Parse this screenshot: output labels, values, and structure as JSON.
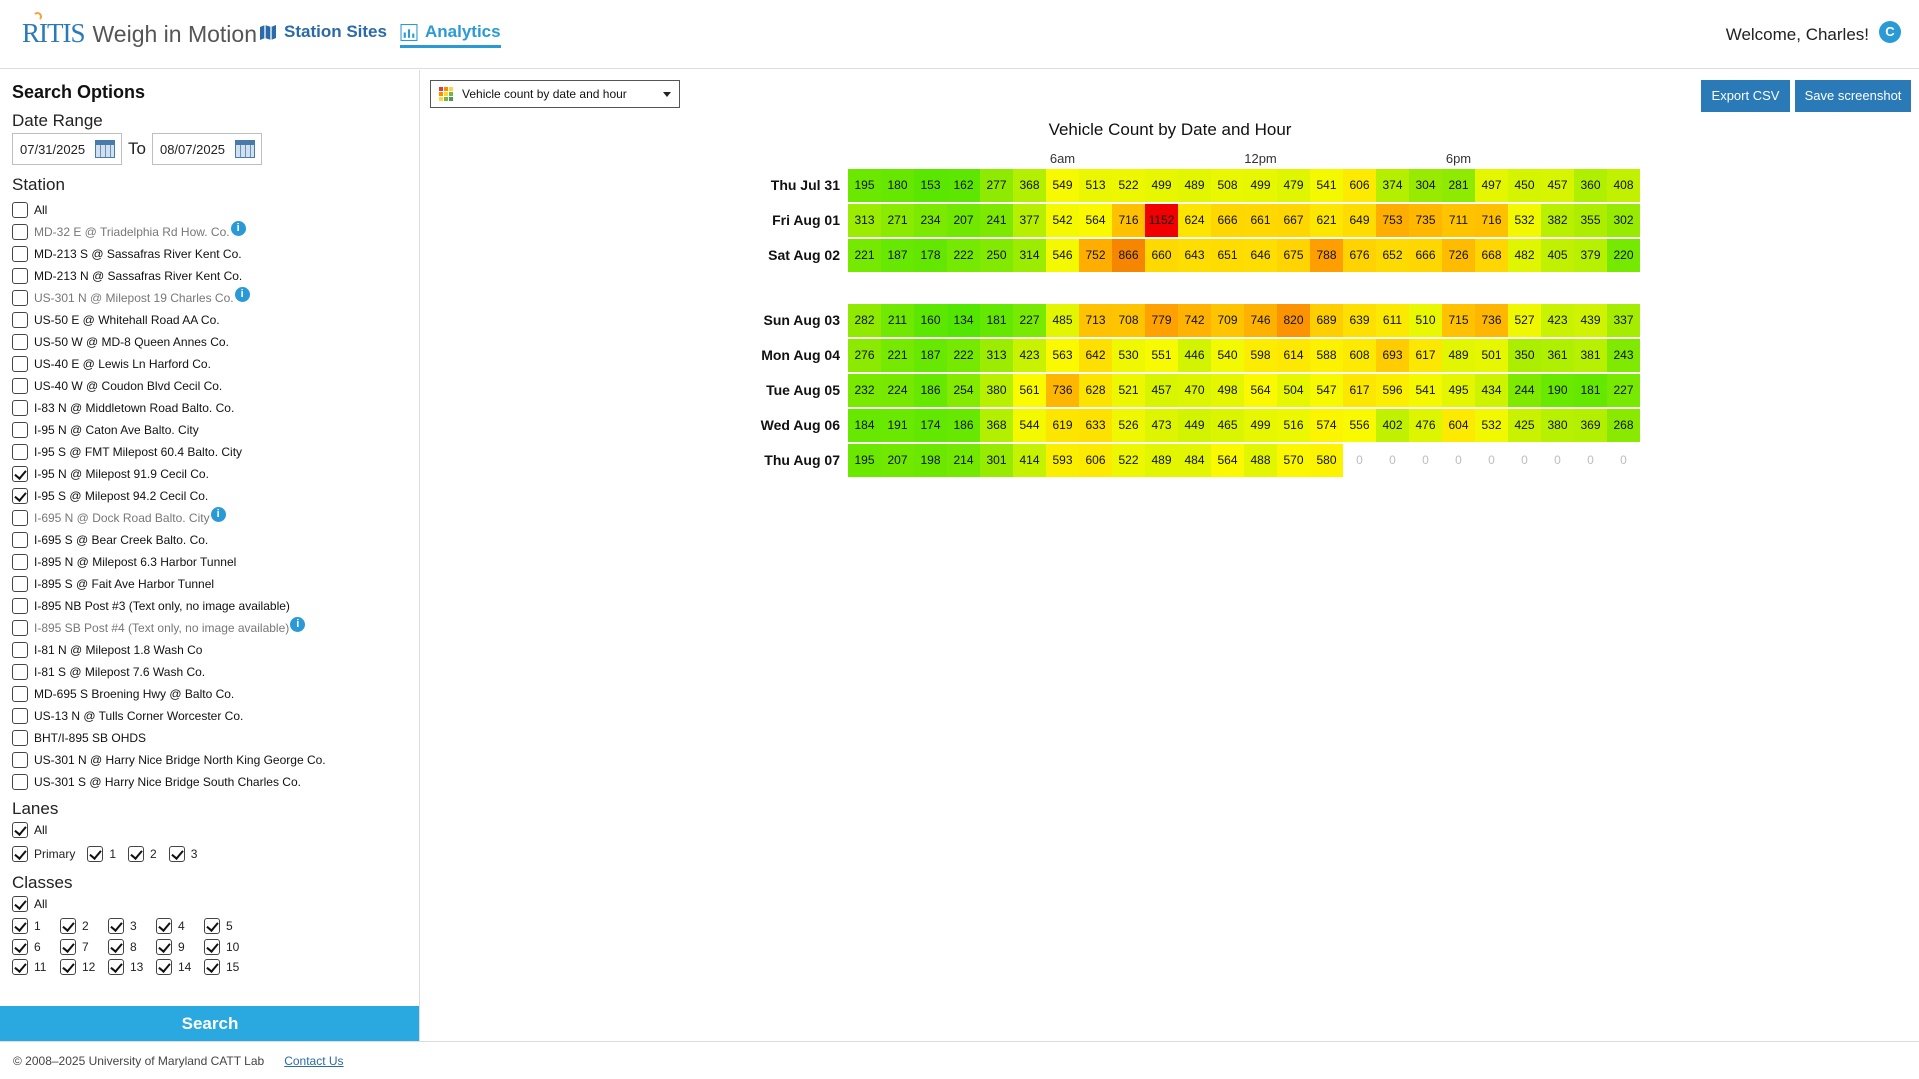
{
  "header": {
    "logo_brand": "RITIS",
    "logo_text": "Weigh in Motion",
    "nav": [
      {
        "label": "Station Sites",
        "active": false
      },
      {
        "label": "Analytics",
        "active": true
      }
    ],
    "welcome": "Welcome, Charles!"
  },
  "sidebar": {
    "title": "Search Options",
    "date_range_label": "Date Range",
    "date_from": "07/31/2025",
    "to_label": "To",
    "date_to": "08/07/2025",
    "station_label": "Station",
    "stations": [
      {
        "label": "All",
        "checked": false,
        "dim": false,
        "info": false
      },
      {
        "label": "MD-32 E @ Triadelphia Rd How. Co.",
        "checked": false,
        "dim": true,
        "info": true
      },
      {
        "label": "MD-213 S @ Sassafras River Kent Co.",
        "checked": false,
        "dim": false,
        "info": false
      },
      {
        "label": "MD-213 N @ Sassafras River Kent Co.",
        "checked": false,
        "dim": false,
        "info": false
      },
      {
        "label": "US-301 N @ Milepost 19 Charles Co.",
        "checked": false,
        "dim": true,
        "info": true
      },
      {
        "label": "US-50 E @ Whitehall Road AA Co.",
        "checked": false,
        "dim": false,
        "info": false
      },
      {
        "label": "US-50 W @ MD-8 Queen Annes Co.",
        "checked": false,
        "dim": false,
        "info": false
      },
      {
        "label": "US-40 E @ Lewis Ln Harford Co.",
        "checked": false,
        "dim": false,
        "info": false
      },
      {
        "label": "US-40 W @ Coudon Blvd Cecil Co.",
        "checked": false,
        "dim": false,
        "info": false
      },
      {
        "label": "I-83 N @ Middletown Road Balto. Co.",
        "checked": false,
        "dim": false,
        "info": false
      },
      {
        "label": "I-95 N @ Caton Ave Balto. City",
        "checked": false,
        "dim": false,
        "info": false
      },
      {
        "label": "I-95 S @ FMT Milepost 60.4 Balto. City",
        "checked": false,
        "dim": false,
        "info": false
      },
      {
        "label": "I-95 N @ Milepost 91.9 Cecil Co.",
        "checked": true,
        "dim": false,
        "info": false
      },
      {
        "label": "I-95 S @ Milepost 94.2 Cecil Co.",
        "checked": true,
        "dim": false,
        "info": false
      },
      {
        "label": "I-695 N @ Dock Road Balto. City",
        "checked": false,
        "dim": true,
        "info": true
      },
      {
        "label": "I-695 S @ Bear Creek Balto. Co.",
        "checked": false,
        "dim": false,
        "info": false
      },
      {
        "label": "I-895 N @ Milepost 6.3 Harbor Tunnel",
        "checked": false,
        "dim": false,
        "info": false
      },
      {
        "label": "I-895 S @ Fait Ave Harbor Tunnel",
        "checked": false,
        "dim": false,
        "info": false
      },
      {
        "label": "I-895 NB Post #3 (Text only, no image available)",
        "checked": false,
        "dim": false,
        "info": false
      },
      {
        "label": "I-895 SB Post #4 (Text only, no image available)",
        "checked": false,
        "dim": true,
        "info": true
      },
      {
        "label": "I-81 N @ Milepost 1.8 Wash Co",
        "checked": false,
        "dim": false,
        "info": false
      },
      {
        "label": "I-81 S @ Milepost 7.6 Wash Co.",
        "checked": false,
        "dim": false,
        "info": false
      },
      {
        "label": "MD-695 S Broening Hwy @ Balto Co.",
        "checked": false,
        "dim": false,
        "info": false
      },
      {
        "label": "US-13 N @ Tulls Corner Worcester Co.",
        "checked": false,
        "dim": false,
        "info": false
      },
      {
        "label": "BHT/I-895 SB OHDS",
        "checked": false,
        "dim": false,
        "info": false
      },
      {
        "label": "US-301 N @ Harry Nice Bridge North King George Co.",
        "checked": false,
        "dim": false,
        "info": false
      },
      {
        "label": "US-301 S @ Harry Nice Bridge South Charles Co.",
        "checked": false,
        "dim": false,
        "info": false
      }
    ],
    "lanes_label": "Lanes",
    "lanes_all": "All",
    "lanes": [
      "Primary",
      "1",
      "2",
      "3"
    ],
    "classes_label": "Classes",
    "classes_all": "All",
    "classes_rows": [
      [
        "1",
        "2",
        "3",
        "4",
        "5"
      ],
      [
        "6",
        "7",
        "8",
        "9",
        "10"
      ],
      [
        "11",
        "12",
        "13",
        "14",
        "15"
      ]
    ],
    "search_button": "Search"
  },
  "toolbar": {
    "view_select": "Vehicle count by date and hour",
    "export_csv": "Export CSV",
    "save_screenshot": "Save screenshot"
  },
  "footer": {
    "copyright": "© 2008–2025 University of Maryland CATT Lab",
    "contact": "Contact Us"
  },
  "chart_data": {
    "type": "heatmap",
    "title": "Vehicle Count by Date and Hour",
    "x_tick_labels": [
      {
        "hour": 6,
        "label": "6am"
      },
      {
        "hour": 12,
        "label": "12pm"
      },
      {
        "hour": 18,
        "label": "6pm"
      }
    ],
    "hours": [
      0,
      1,
      2,
      3,
      4,
      5,
      6,
      7,
      8,
      9,
      10,
      11,
      12,
      13,
      14,
      15,
      16,
      17,
      18,
      19,
      20,
      21,
      22,
      23
    ],
    "rows": [
      {
        "label": "Thu Jul 31",
        "week": 0,
        "values": [
          195,
          180,
          153,
          162,
          277,
          368,
          549,
          513,
          522,
          499,
          489,
          508,
          499,
          479,
          541,
          606,
          374,
          304,
          281,
          497,
          450,
          457,
          360,
          408
        ]
      },
      {
        "label": "Fri Aug 01",
        "week": 0,
        "values": [
          313,
          271,
          234,
          207,
          241,
          377,
          542,
          564,
          716,
          1152,
          624,
          666,
          661,
          667,
          621,
          649,
          753,
          735,
          711,
          716,
          532,
          382,
          355,
          302
        ]
      },
      {
        "label": "Sat Aug 02",
        "week": 0,
        "values": [
          221,
          187,
          178,
          222,
          250,
          314,
          546,
          752,
          866,
          660,
          643,
          651,
          646,
          675,
          788,
          676,
          652,
          666,
          726,
          668,
          482,
          405,
          379,
          220
        ]
      },
      {
        "label": "Sun Aug 03",
        "week": 1,
        "values": [
          282,
          211,
          160,
          134,
          181,
          227,
          485,
          713,
          708,
          779,
          742,
          709,
          746,
          820,
          689,
          639,
          611,
          510,
          715,
          736,
          527,
          423,
          439,
          337
        ]
      },
      {
        "label": "Mon Aug 04",
        "week": 1,
        "values": [
          276,
          221,
          187,
          222,
          313,
          423,
          563,
          642,
          530,
          551,
          446,
          540,
          598,
          614,
          588,
          608,
          693,
          617,
          489,
          501,
          350,
          361,
          381,
          243
        ]
      },
      {
        "label": "Tue Aug 05",
        "week": 1,
        "values": [
          232,
          224,
          186,
          254,
          380,
          561,
          736,
          628,
          521,
          457,
          470,
          498,
          564,
          504,
          547,
          617,
          596,
          541,
          495,
          434,
          244,
          190,
          181,
          227
        ]
      },
      {
        "label": "Wed Aug 06",
        "week": 1,
        "values": [
          184,
          191,
          174,
          186,
          368,
          544,
          619,
          633,
          526,
          473,
          449,
          465,
          499,
          516,
          574,
          556,
          402,
          476,
          604,
          532,
          425,
          380,
          369,
          268
        ]
      },
      {
        "label": "Thu Aug 07",
        "week": 1,
        "values": [
          195,
          207,
          198,
          214,
          301,
          414,
          593,
          606,
          522,
          489,
          484,
          564,
          488,
          570,
          580,
          0,
          0,
          0,
          0,
          0,
          0,
          0,
          0,
          0
        ]
      }
    ]
  }
}
